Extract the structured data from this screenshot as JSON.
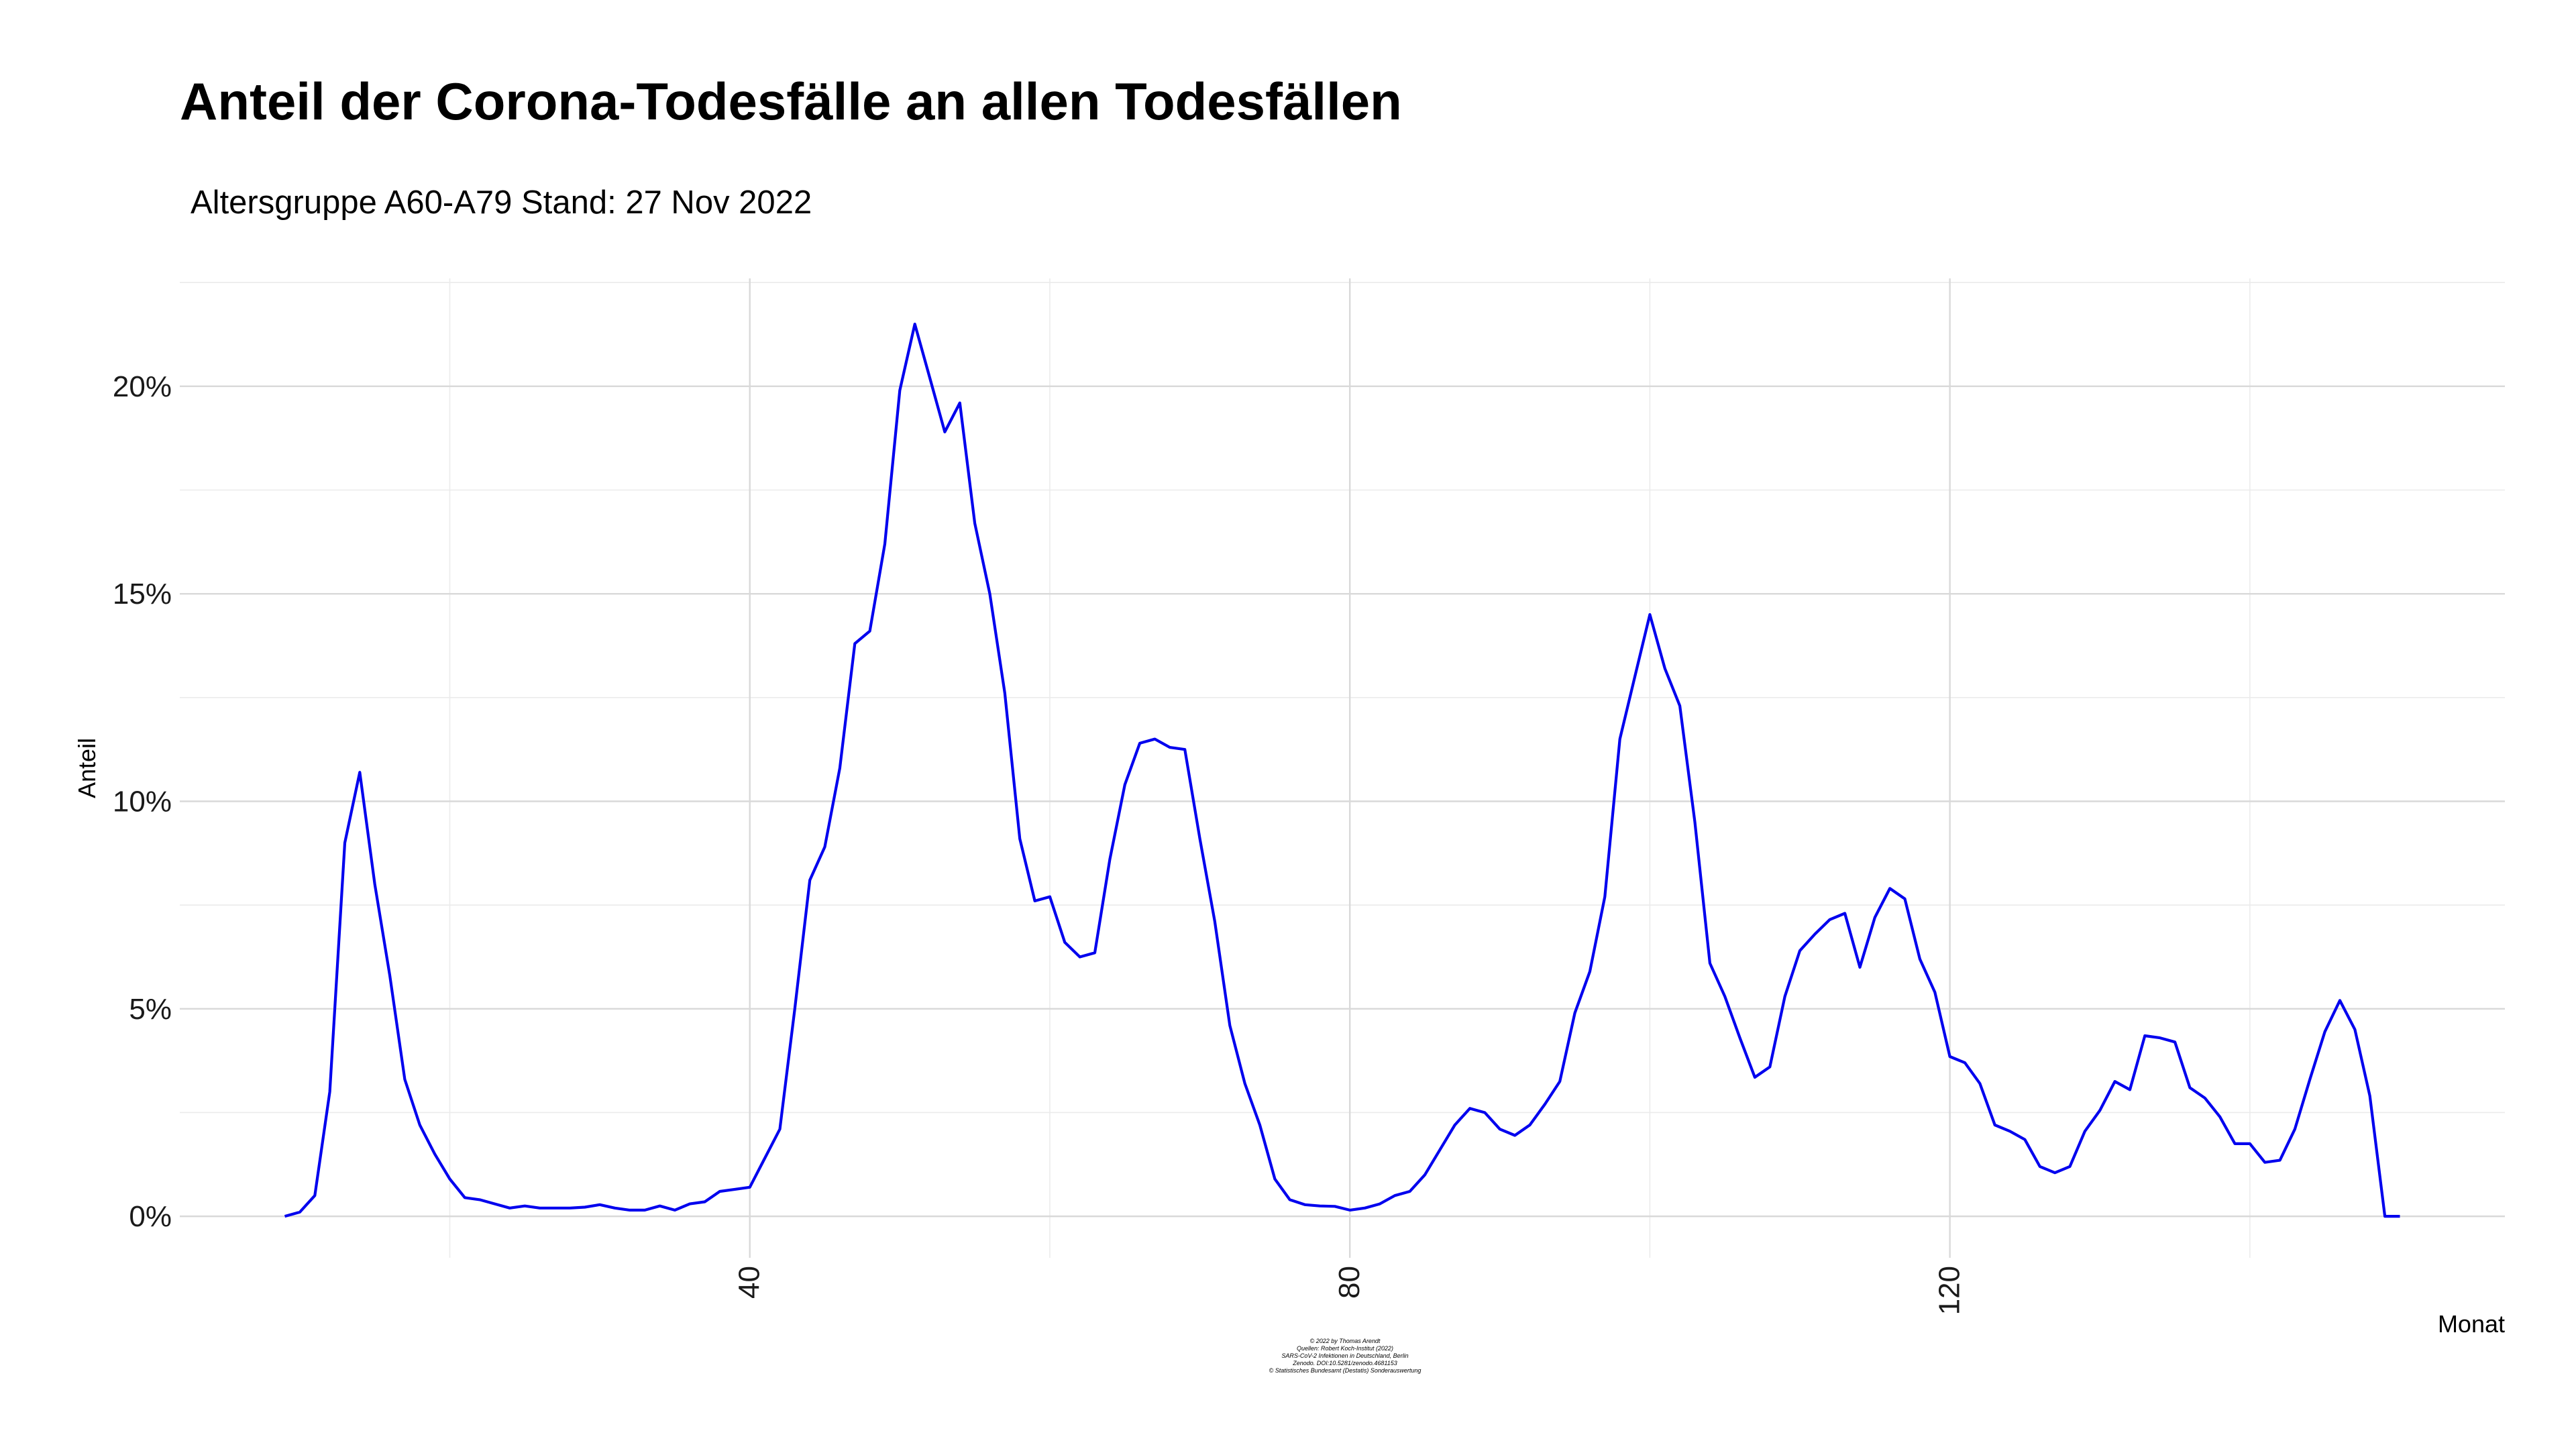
{
  "chart_data": {
    "type": "line",
    "title": "Anteil der Corona-Todesfälle an allen Todesfällen",
    "subtitle": "Altersgruppe A60-A79  Stand: 27 Nov 2022",
    "xlabel": "Monat",
    "ylabel": "Anteil",
    "xlim": [
      2,
      157
    ],
    "ylim": [
      -1,
      22.6
    ],
    "x_ticks": [
      40,
      80,
      120
    ],
    "x_tick_labels": [
      "40",
      "80",
      "120"
    ],
    "y_ticks": [
      0,
      5,
      10,
      15,
      20
    ],
    "y_tick_labels": [
      "0%",
      "5%",
      "10%",
      "15%",
      "20%"
    ],
    "grid": true,
    "line_color": "#0000ee",
    "caption": [
      "© 2022 by Thomas Arendt",
      "Quellen: Robert Koch-Institut (2022)",
      "SARS-CoV-2 Infektionen in Deutschland, Berlin",
      "Zenodo. DOI:10.5281/zenodo.4681153",
      "© Statistisches Bundesamt (Destatis) Sonderauswertung"
    ],
    "series": [
      {
        "x": [
          9,
          10,
          11,
          12,
          13,
          14,
          15,
          16,
          17,
          18,
          19,
          20,
          21,
          22,
          23,
          24,
          25,
          26,
          27,
          28,
          29,
          30,
          31,
          32,
          33,
          34,
          35,
          36,
          37,
          38,
          39,
          40,
          41,
          42,
          43,
          44,
          45,
          46,
          47,
          48,
          49,
          50,
          51,
          52,
          53,
          54,
          55,
          56,
          57,
          58,
          59,
          60,
          61,
          62,
          63,
          64,
          65,
          66,
          67,
          68,
          69,
          70,
          71,
          72,
          73,
          74,
          75,
          76,
          77,
          78,
          79,
          80,
          81,
          82,
          83,
          84,
          85,
          86,
          87,
          88,
          89,
          90,
          91,
          92,
          93,
          94,
          95,
          96,
          97,
          98,
          99,
          100,
          101,
          102,
          103,
          104,
          105,
          106,
          107,
          108,
          109,
          110,
          111,
          112,
          113,
          114,
          115,
          116,
          117,
          118,
          119,
          120,
          121,
          122,
          123,
          124,
          125,
          126,
          127,
          128,
          129,
          130,
          131,
          132,
          133,
          134,
          135,
          136,
          137,
          138,
          139,
          140,
          141,
          142,
          143,
          144,
          145,
          146,
          147,
          148,
          149,
          150
        ],
        "y": [
          0.0,
          0.1,
          0.5,
          3.0,
          9.0,
          10.7,
          8.0,
          5.8,
          3.3,
          2.2,
          1.5,
          0.9,
          0.45,
          0.4,
          0.3,
          0.2,
          0.25,
          0.2,
          0.2,
          0.2,
          0.22,
          0.28,
          0.2,
          0.15,
          0.15,
          0.25,
          0.15,
          0.3,
          0.35,
          0.6,
          0.65,
          0.7,
          1.4,
          2.1,
          5.0,
          8.1,
          8.9,
          10.8,
          13.8,
          14.1,
          16.2,
          19.9,
          21.5,
          20.2,
          18.9,
          19.6,
          16.7,
          15.0,
          12.6,
          9.1,
          7.6,
          7.7,
          6.6,
          6.25,
          6.35,
          8.6,
          10.4,
          11.4,
          11.5,
          11.3,
          11.25,
          9.1,
          7.1,
          4.6,
          3.2,
          2.2,
          0.9,
          0.4,
          0.28,
          0.25,
          0.24,
          0.15,
          0.2,
          0.3,
          0.5,
          0.6,
          1.0,
          1.6,
          2.2,
          2.6,
          2.5,
          2.1,
          1.95,
          2.2,
          2.7,
          3.25,
          4.9,
          5.9,
          7.7,
          11.5,
          13.0,
          14.5,
          13.2,
          12.3,
          9.5,
          6.1,
          5.3,
          4.3,
          3.35,
          3.6,
          5.3,
          6.4,
          6.8,
          7.15,
          7.3,
          6.0,
          7.2,
          7.9,
          7.65,
          6.2,
          5.4,
          3.85,
          3.7,
          3.2,
          2.2,
          2.05,
          1.85,
          1.2,
          1.05,
          1.2,
          2.05,
          2.55,
          3.25,
          3.05,
          4.35,
          4.3,
          4.2,
          3.1,
          2.85,
          2.4,
          1.75,
          1.75,
          1.3,
          1.35,
          2.1,
          3.3,
          4.45,
          5.2,
          4.5,
          2.9,
          0.0,
          0.0
        ]
      }
    ]
  }
}
